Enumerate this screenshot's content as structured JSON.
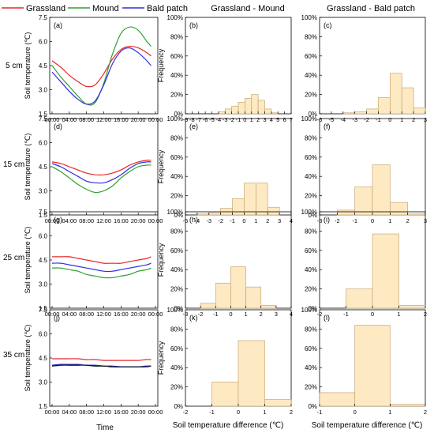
{
  "legend": [
    {
      "name": "Grassland",
      "color": "#e8262a"
    },
    {
      "name": "Mound",
      "color": "#2ea02e"
    },
    {
      "name": "Bald patch",
      "color": "#2e2ee0"
    }
  ],
  "column_titles": [
    "Grassland - Mound",
    "Grassland - Bald patch"
  ],
  "row_labels": [
    "5 cm",
    "15 cm",
    "25 cm",
    "35 cm"
  ],
  "time_axis_label": "Time",
  "diff_axis_label": "Soil temperature difference (℃)",
  "line_ylabel": "Soil temperature (℃)",
  "hist_ylabel": "Frequency",
  "bar_color": "#fde9c2",
  "bar_edge": "#c8a878",
  "chart_data": [
    {
      "panel": "(a)",
      "type": "line",
      "ylim": [
        1.5,
        7.5
      ],
      "yticks": [
        1.5,
        3.0,
        4.5,
        6.0,
        7.5
      ],
      "x": [
        "00:00",
        "02:00",
        "04:00",
        "06:00",
        "08:00",
        "10:00",
        "12:00",
        "14:00",
        "16:00",
        "18:00",
        "20:00",
        "22:00",
        "23:00"
      ],
      "xticks": [
        "00:00",
        "04:00",
        "08:00",
        "12:00",
        "16:00",
        "20:00",
        "00:00"
      ],
      "series": [
        {
          "name": "Grassland",
          "color": "#e8262a",
          "values": [
            4.8,
            4.4,
            3.9,
            3.5,
            3.2,
            3.3,
            4.0,
            4.9,
            5.5,
            5.7,
            5.6,
            5.3,
            5.1
          ]
        },
        {
          "name": "Mound",
          "color": "#2ea02e",
          "values": [
            4.5,
            3.8,
            3.2,
            2.6,
            2.1,
            2.2,
            3.4,
            5.2,
            6.5,
            6.9,
            6.7,
            6.0,
            5.7
          ]
        },
        {
          "name": "Bald patch",
          "color": "#2e2ee0",
          "values": [
            4.1,
            3.5,
            2.9,
            2.4,
            2.1,
            2.3,
            3.3,
            4.6,
            5.4,
            5.6,
            5.3,
            4.8,
            4.5
          ]
        }
      ]
    },
    {
      "panel": "(b)",
      "type": "bar",
      "ylim": [
        0,
        100
      ],
      "xticks": [
        "-9",
        "-8",
        "-7",
        "-6",
        "-5",
        "-4",
        "-3",
        "-2",
        "-1",
        "0",
        "1",
        "2",
        "3",
        "4",
        "5",
        "6",
        "7"
      ],
      "bins": [
        [
          -4,
          -3
        ],
        [
          -3,
          -2
        ],
        [
          -2,
          -1
        ],
        [
          -1,
          0
        ],
        [
          0,
          1
        ],
        [
          1,
          2
        ],
        [
          2,
          3
        ],
        [
          3,
          4
        ],
        [
          4,
          5
        ]
      ],
      "values": [
        2,
        5,
        8,
        12,
        16,
        20,
        14,
        5,
        1
      ]
    },
    {
      "panel": "(c)",
      "type": "bar",
      "ylim": [
        0,
        100
      ],
      "xticks": [
        "-6",
        "-5",
        "-4",
        "-3",
        "-2",
        "-1",
        "0",
        "1",
        "2",
        "3"
      ],
      "bins": [
        [
          -4,
          -3
        ],
        [
          -3,
          -2
        ],
        [
          -2,
          -1
        ],
        [
          -1,
          0
        ],
        [
          0,
          1
        ],
        [
          1,
          2
        ],
        [
          2,
          3
        ]
      ],
      "values": [
        1,
        2,
        5,
        17,
        42,
        27,
        6
      ]
    },
    {
      "panel": "(d)",
      "type": "line",
      "ylim": [
        1.5,
        7.5
      ],
      "yticks": [
        1.5,
        3.0,
        4.5,
        6.0,
        7.5
      ],
      "x": [
        "00:00",
        "02:00",
        "04:00",
        "06:00",
        "08:00",
        "10:00",
        "12:00",
        "14:00",
        "16:00",
        "18:00",
        "20:00",
        "22:00",
        "23:00"
      ],
      "xticks": [
        "00:00",
        "04:00",
        "08:00",
        "12:00",
        "16:00",
        "20:00",
        "00:00"
      ],
      "series": [
        {
          "name": "Grassland",
          "color": "#e8262a",
          "values": [
            4.8,
            4.7,
            4.5,
            4.3,
            4.1,
            4.0,
            4.0,
            4.1,
            4.3,
            4.6,
            4.8,
            4.9,
            4.9
          ]
        },
        {
          "name": "Mound",
          "color": "#2ea02e",
          "values": [
            4.5,
            4.2,
            3.8,
            3.4,
            3.1,
            2.9,
            3.0,
            3.3,
            3.8,
            4.2,
            4.5,
            4.6,
            4.6
          ]
        },
        {
          "name": "Bald patch",
          "color": "#2e2ee0",
          "values": [
            4.7,
            4.5,
            4.2,
            3.9,
            3.6,
            3.5,
            3.5,
            3.7,
            4.0,
            4.4,
            4.7,
            4.8,
            4.8
          ]
        }
      ]
    },
    {
      "panel": "(e)",
      "type": "bar",
      "ylim": [
        0,
        100
      ],
      "xticks": [
        "-5",
        "-4",
        "-3",
        "-2",
        "-1",
        "0",
        "1",
        "2",
        "3",
        "4"
      ],
      "bins": [
        [
          -4,
          -3
        ],
        [
          -3,
          -2
        ],
        [
          -2,
          -1
        ],
        [
          -1,
          0
        ],
        [
          0,
          1
        ],
        [
          1,
          2
        ],
        [
          2,
          3
        ]
      ],
      "values": [
        1,
        2,
        7,
        17,
        33,
        33,
        8
      ]
    },
    {
      "panel": "(f)",
      "type": "bar",
      "ylim": [
        0,
        100
      ],
      "xticks": [
        "-3",
        "-2",
        "-1",
        "0",
        "1",
        "2",
        "3"
      ],
      "bins": [
        [
          -2,
          -1
        ],
        [
          -1,
          0
        ],
        [
          0,
          1
        ],
        [
          1,
          2
        ],
        [
          2,
          3
        ]
      ],
      "values": [
        5,
        29,
        52,
        13,
        1
      ]
    },
    {
      "panel": "(g)",
      "type": "line",
      "ylim": [
        1.5,
        7.5
      ],
      "yticks": [
        1.5,
        3.0,
        4.5,
        6.0,
        7.5
      ],
      "x": [
        "00:00",
        "02:00",
        "04:00",
        "06:00",
        "08:00",
        "10:00",
        "12:00",
        "14:00",
        "16:00",
        "18:00",
        "20:00",
        "22:00",
        "23:00"
      ],
      "xticks": [
        "00:00",
        "04:00",
        "08:00",
        "12:00",
        "16:00",
        "20:00",
        "00:00"
      ],
      "series": [
        {
          "name": "Grassland",
          "color": "#e8262a",
          "values": [
            4.7,
            4.7,
            4.7,
            4.6,
            4.5,
            4.4,
            4.3,
            4.3,
            4.3,
            4.4,
            4.5,
            4.6,
            4.7
          ]
        },
        {
          "name": "Mound",
          "color": "#2ea02e",
          "values": [
            4.0,
            4.0,
            3.9,
            3.8,
            3.6,
            3.5,
            3.4,
            3.4,
            3.5,
            3.6,
            3.8,
            3.9,
            4.0
          ]
        },
        {
          "name": "Bald patch",
          "color": "#2e2ee0",
          "values": [
            4.3,
            4.3,
            4.2,
            4.1,
            4.0,
            3.9,
            3.8,
            3.8,
            3.9,
            4.0,
            4.1,
            4.2,
            4.3
          ]
        }
      ]
    },
    {
      "panel": "(h)",
      "type": "bar",
      "ylim": [
        0,
        100
      ],
      "xticks": [
        "-3",
        "-2",
        "-1",
        "0",
        "1",
        "2",
        "3",
        "4"
      ],
      "bins": [
        [
          -2,
          -1
        ],
        [
          -1,
          0
        ],
        [
          0,
          1
        ],
        [
          1,
          2
        ],
        [
          2,
          3
        ]
      ],
      "values": [
        5,
        26,
        43,
        22,
        3
      ]
    },
    {
      "panel": "(i)",
      "type": "bar",
      "ylim": [
        0,
        100
      ],
      "xticks": [
        "-2",
        "-1",
        "0",
        "1",
        "2"
      ],
      "bins": [
        [
          -1,
          0
        ],
        [
          0,
          1
        ],
        [
          1,
          2
        ]
      ],
      "values": [
        20,
        77,
        3
      ]
    },
    {
      "panel": "(j)",
      "type": "line",
      "ylim": [
        1.5,
        7.5
      ],
      "yticks": [
        1.5,
        3.0,
        4.5,
        6.0,
        7.5
      ],
      "x": [
        "00:00",
        "02:00",
        "04:00",
        "06:00",
        "08:00",
        "10:00",
        "12:00",
        "14:00",
        "16:00",
        "18:00",
        "20:00",
        "22:00",
        "23:00"
      ],
      "xticks": [
        "00:00",
        "04:00",
        "08:00",
        "12:00",
        "16:00",
        "20:00",
        "00:00"
      ],
      "series": [
        {
          "name": "Grassland",
          "color": "#e8262a",
          "values": [
            4.45,
            4.45,
            4.45,
            4.45,
            4.4,
            4.4,
            4.35,
            4.35,
            4.35,
            4.35,
            4.35,
            4.4,
            4.4
          ]
        },
        {
          "name": "Mound",
          "color": "#2ea02e",
          "values": [
            4.0,
            4.05,
            4.05,
            4.05,
            4.05,
            4.0,
            4.0,
            3.95,
            3.95,
            3.95,
            3.95,
            4.0,
            4.0
          ]
        },
        {
          "name": "Bald patch",
          "color": "#2e2ee0",
          "values": [
            4.05,
            4.1,
            4.1,
            4.1,
            4.05,
            4.05,
            4.0,
            4.0,
            3.95,
            3.95,
            3.95,
            4.0,
            4.0
          ]
        },
        {
          "name": "",
          "color": "#111111",
          "values": [
            4.0,
            4.05,
            4.05,
            4.05,
            4.05,
            4.0,
            4.0,
            3.95,
            3.95,
            3.95,
            3.95,
            3.95,
            4.0
          ]
        }
      ]
    },
    {
      "panel": "(k)",
      "type": "bar",
      "ylim": [
        0,
        100
      ],
      "xticks": [
        "-2",
        "-1",
        "0",
        "1",
        "2"
      ],
      "bins": [
        [
          -1,
          0
        ],
        [
          0,
          1
        ],
        [
          1,
          2
        ]
      ],
      "values": [
        25,
        68,
        7
      ]
    },
    {
      "panel": "(l)",
      "type": "bar",
      "ylim": [
        0,
        100
      ],
      "xticks": [
        "-1",
        "0",
        "1",
        "2"
      ],
      "bins": [
        [
          -1,
          0
        ],
        [
          0,
          1
        ],
        [
          1,
          2
        ]
      ],
      "values": [
        14,
        84,
        2
      ]
    }
  ]
}
